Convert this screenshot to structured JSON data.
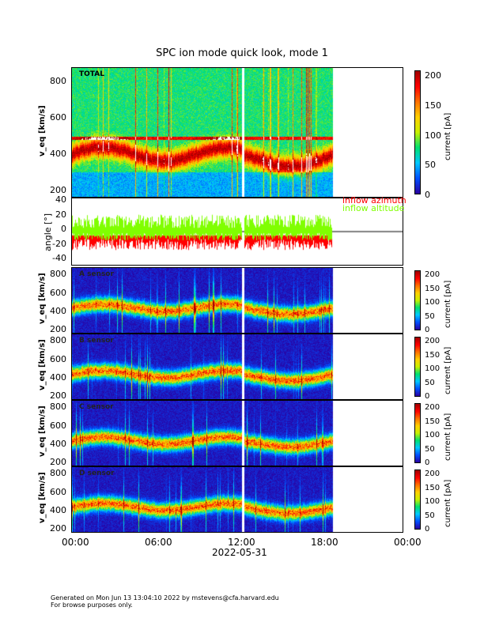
{
  "title": "SPC ion mode quick look, mode 1",
  "footer": {
    "line1": "Generated on Mon Jun 13 13:04:10 2022 by mstevens@cfa.harvard.edu",
    "line2": "For browse purposes only."
  },
  "chart_data": [
    {
      "type": "heatmap",
      "label": "TOTAL",
      "ylabel": "v_eq [km/s]",
      "ylim": [
        160,
        880
      ],
      "yticks": [
        "200",
        "400",
        "600",
        "800"
      ],
      "colorbar": {
        "label": "current [pA]",
        "range": [
          0,
          200
        ],
        "ticks": [
          "0",
          "50",
          "100",
          "150",
          "200"
        ]
      }
    },
    {
      "type": "line",
      "ylabel": "angle [°]",
      "ylim": [
        -45,
        45
      ],
      "yticks": [
        "40",
        "20",
        "0",
        "-20",
        "-40"
      ],
      "legend": [
        "inflow azimuth",
        "inflow altitude"
      ],
      "series_colors": [
        "#ff0000",
        "#80ff00"
      ]
    },
    {
      "type": "heatmap",
      "label": "A sensor",
      "ylabel": "v_eq [km/s]",
      "yticks": [
        "200",
        "400",
        "600",
        "800"
      ],
      "colorbar": {
        "label": "current [pA]",
        "ticks": [
          "0",
          "50",
          "100",
          "150",
          "200"
        ]
      }
    },
    {
      "type": "heatmap",
      "label": "B sensor",
      "ylabel": "v_eq [km/s]",
      "yticks": [
        "200",
        "400",
        "600",
        "800"
      ],
      "colorbar": {
        "label": "current [pA]",
        "ticks": [
          "0",
          "50",
          "100",
          "150",
          "200"
        ]
      }
    },
    {
      "type": "heatmap",
      "label": "C sensor",
      "ylabel": "v_eq [km/s]",
      "yticks": [
        "200",
        "400",
        "600",
        "800"
      ],
      "colorbar": {
        "label": "current [pA]",
        "ticks": [
          "0",
          "50",
          "100",
          "150",
          "200"
        ]
      }
    },
    {
      "type": "heatmap",
      "label": "D sensor",
      "ylabel": "v_eq [km/s]",
      "yticks": [
        "200",
        "400",
        "600",
        "800"
      ],
      "colorbar": {
        "label": "current [pA]",
        "ticks": [
          "0",
          "50",
          "100",
          "150",
          "200"
        ]
      }
    }
  ],
  "xaxis": {
    "ticks": [
      "00:00",
      "06:00",
      "12:00",
      "18:00",
      "00:00"
    ],
    "label": "2022-05-31",
    "data_end_hours": 18.8,
    "gap_hours": 12.3
  }
}
